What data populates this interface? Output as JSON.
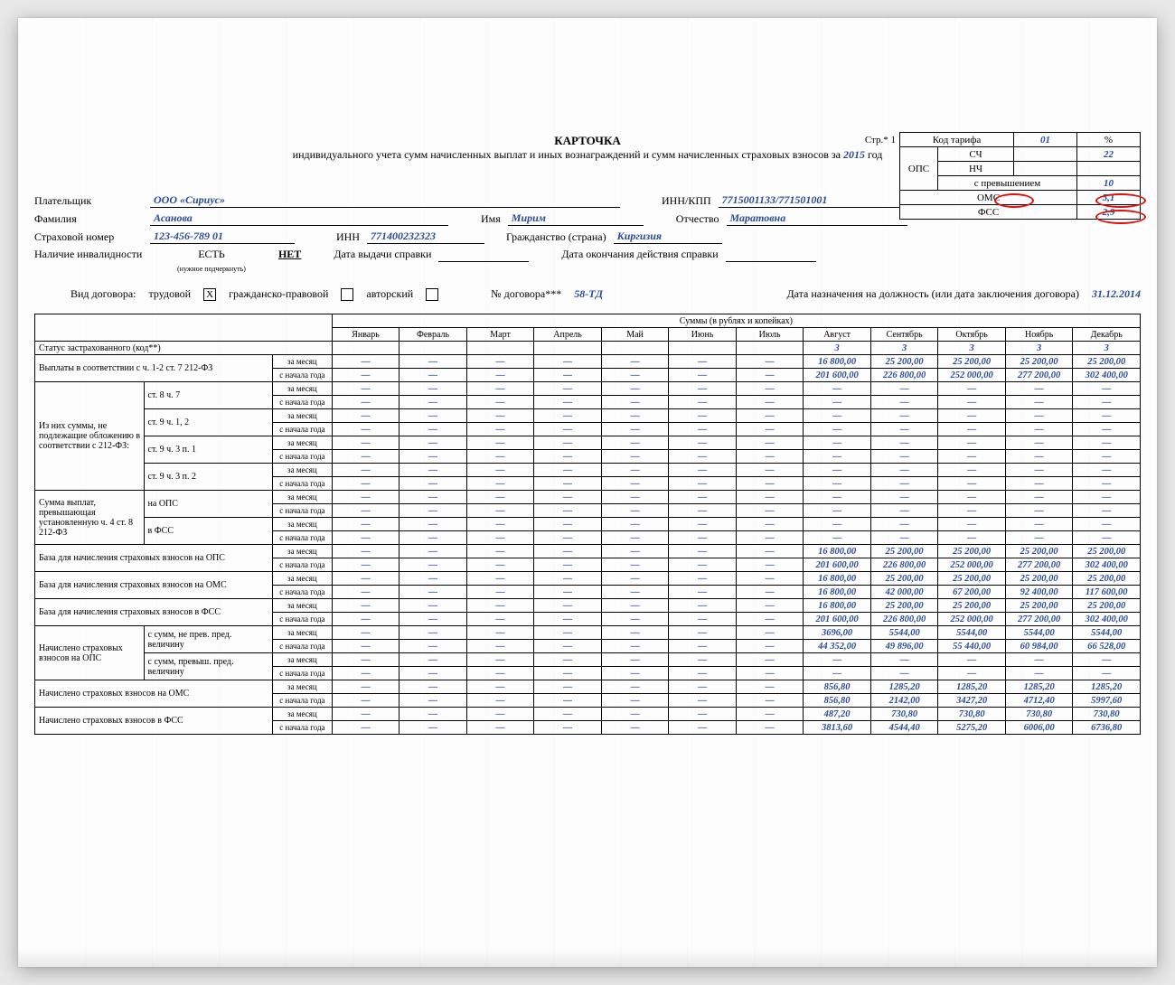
{
  "colors": {
    "ink": "#000000",
    "blue": "#2a4b9a",
    "highlight": "#d11",
    "paper": "#fdfdfd"
  },
  "page_label": "Стр.* 1",
  "year": "2015",
  "title_line1": "КАРТОЧКА",
  "title_line2_a": "индивидуального учета сумм начисленных выплат и иных вознаграждений и сумм начисленных страховых взносов за",
  "title_line2_b": "год",
  "tariff": {
    "hdr_code": "Код тарифа",
    "code": "01",
    "pct": "%",
    "ops": "ОПС",
    "sch": "СЧ",
    "sch_v": "22",
    "nch": "НЧ",
    "nch_v": "",
    "prev": "с превышением",
    "prev_v": "10",
    "oms": "ОМС",
    "oms_v": "5,1",
    "fss": "ФСС",
    "fss_v": "2,9"
  },
  "payer": {
    "label": "Плательщик",
    "value": "ООО «Сириус»",
    "inn_label": "ИНН/КПП",
    "inn": "7715001133/771501001"
  },
  "person": {
    "fam_l": "Фамилия",
    "fam": "Асанова",
    "name_l": "Имя",
    "name": "Мирим",
    "patr_l": "Отчество",
    "patr": "Маратовна",
    "snils_l": "Страховой номер",
    "snils": "123-456-789 01",
    "inn_l": "ИНН",
    "inn": "771400232323",
    "citiz_l": "Гражданство (страна)",
    "citiz": "Киргизия",
    "inval_l": "Наличие инвалидности",
    "yes": "ЕСТЬ",
    "no": "НЕТ",
    "underline_note": "(нужное подчеркнуть)",
    "ref_date_l": "Дата выдачи справки",
    "ref_end_l": "Дата окончания действия справки"
  },
  "contract": {
    "type_l": "Вид договора:",
    "labor": "трудовой",
    "civil": "гражданско-правовой",
    "auth": "авторский",
    "num_l": "№ договора***",
    "num": "58-ТД",
    "date_l": "Дата назначения на должность (или дата заключения договора)",
    "date": "31.12.2014",
    "labor_checked": "X"
  },
  "months": [
    "Январь",
    "Февраль",
    "Март",
    "Апрель",
    "Май",
    "Июнь",
    "Июль",
    "Август",
    "Сентябрь",
    "Октябрь",
    "Ноябрь",
    "Декабрь"
  ],
  "sum_header": "Суммы (в рублях и копейках)",
  "period_m": "за месяц",
  "period_y": "с начала года",
  "rows": {
    "status": "Статус застрахованного (код**)",
    "pay": "Выплаты в соответствии с ч. 1-2 ст. 7 212-ФЗ",
    "excl_hdr": "Из них суммы, не подлежащие обложению в соответствии с 212-ФЗ:",
    "excl": [
      "ст. 8 ч. 7",
      "ст. 9 ч. 1, 2",
      "ст. 9 ч. 3 п. 1",
      "ст. 9 ч. 3 п. 2"
    ],
    "excess_hdr": "Сумма выплат, превышающая установленную ч. 4 ст. 8 212-ФЗ",
    "excess": [
      "на ОПС",
      "в ФСС"
    ],
    "base_ops": "База для начисления страховых взносов на ОПС",
    "base_oms": "База для начисления страховых взносов на ОМС",
    "base_fss": "База для начисления страховых взносов в ФСС",
    "acc_ops_hdr": "Начислено страховых взносов на ОПС",
    "acc_ops": [
      "с сумм, не прев. пред. величину",
      "с сумм, превыш. пред. величину"
    ],
    "acc_oms": "Начислено страховых взносов на ОМС",
    "acc_fss": "Начислено страховых взносов в ФСС"
  },
  "data": {
    "status": [
      "",
      "",
      "",
      "",
      "",
      "",
      "",
      "3",
      "3",
      "3",
      "3",
      "3"
    ],
    "pay_m": [
      "—",
      "—",
      "—",
      "—",
      "—",
      "—",
      "—",
      "16 800,00",
      "25 200,00",
      "25 200,00",
      "25 200,00",
      "25 200,00"
    ],
    "pay_y": [
      "—",
      "—",
      "—",
      "—",
      "—",
      "—",
      "—",
      "201 600,00",
      "226 800,00",
      "252 000,00",
      "277 200,00",
      "302 400,00"
    ],
    "base_ops_m": [
      "—",
      "—",
      "—",
      "—",
      "—",
      "—",
      "—",
      "16 800,00",
      "25 200,00",
      "25 200,00",
      "25 200,00",
      "25 200,00"
    ],
    "base_ops_y": [
      "—",
      "—",
      "—",
      "—",
      "—",
      "—",
      "—",
      "201 600,00",
      "226 800,00",
      "252 000,00",
      "277 200,00",
      "302 400,00"
    ],
    "base_oms_m": [
      "—",
      "—",
      "—",
      "—",
      "—",
      "—",
      "—",
      "16 800,00",
      "25 200,00",
      "25 200,00",
      "25 200,00",
      "25 200,00"
    ],
    "base_oms_y": [
      "—",
      "—",
      "—",
      "—",
      "—",
      "—",
      "—",
      "16 800,00",
      "42 000,00",
      "67 200,00",
      "92 400,00",
      "117 600,00"
    ],
    "base_fss_m": [
      "—",
      "—",
      "—",
      "—",
      "—",
      "—",
      "—",
      "16 800,00",
      "25 200,00",
      "25 200,00",
      "25 200,00",
      "25 200,00"
    ],
    "base_fss_y": [
      "—",
      "—",
      "—",
      "—",
      "—",
      "—",
      "—",
      "201 600,00",
      "226 800,00",
      "252 000,00",
      "277 200,00",
      "302 400,00"
    ],
    "acc_ops1_m": [
      "—",
      "—",
      "—",
      "—",
      "—",
      "—",
      "—",
      "3696,00",
      "5544,00",
      "5544,00",
      "5544,00",
      "5544,00"
    ],
    "acc_ops1_y": [
      "—",
      "—",
      "—",
      "—",
      "—",
      "—",
      "—",
      "44 352,00",
      "49 896,00",
      "55 440,00",
      "60 984,00",
      "66 528,00"
    ],
    "acc_oms_m": [
      "—",
      "—",
      "—",
      "—",
      "—",
      "—",
      "—",
      "856,80",
      "1285,20",
      "1285,20",
      "1285,20",
      "1285,20"
    ],
    "acc_oms_y": [
      "—",
      "—",
      "—",
      "—",
      "—",
      "—",
      "—",
      "856,80",
      "2142,00",
      "3427,20",
      "4712,40",
      "5997,60"
    ],
    "acc_fss_m": [
      "—",
      "—",
      "—",
      "—",
      "—",
      "—",
      "—",
      "487,20",
      "730,80",
      "730,80",
      "730,80",
      "730,80"
    ],
    "acc_fss_y": [
      "—",
      "—",
      "—",
      "—",
      "—",
      "—",
      "—",
      "3813,60",
      "4544,40",
      "5275,20",
      "6006,00",
      "6736,80"
    ],
    "dash12": [
      "—",
      "—",
      "—",
      "—",
      "—",
      "—",
      "—",
      "—",
      "—",
      "—",
      "—",
      "—"
    ]
  }
}
